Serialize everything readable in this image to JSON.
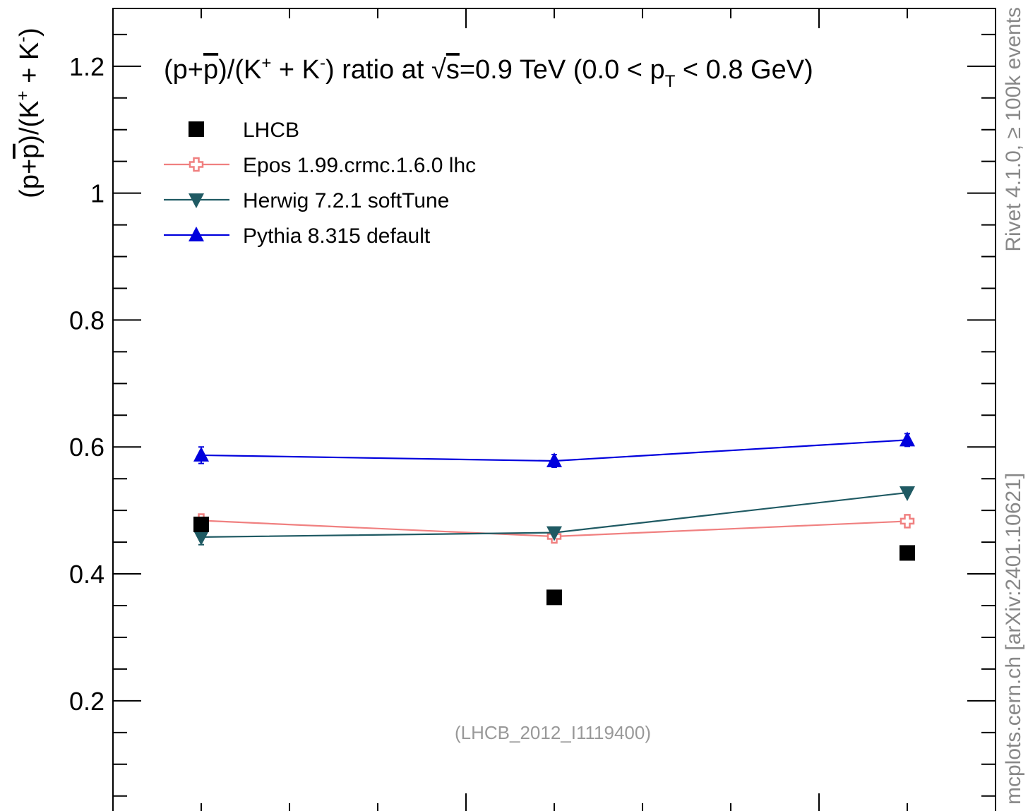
{
  "chart_data": {
    "type": "line",
    "title": "(p+p̄)/(K⁺ + K⁻) ratio at √s=0.9 TeV (0.0 < pT < 0.8 GeV)",
    "title_parts": {
      "a": "(p+",
      "p": "p",
      "b": ")/(K",
      "kplus": "+",
      "c": " + K",
      "kminus": "-",
      "d": ") ratio at ",
      "sqrt": "√",
      "s": "s",
      "e": "=0.9 TeV (0.0 < p",
      "t": "T",
      "f": " < 0.8 GeV)"
    },
    "ylabel": "(p+p̄)/(K⁺ + K⁻)",
    "ylabel_parts": {
      "a": "(p+",
      "p": "p",
      "b": ")/(K",
      "kplus": "+",
      "c": " + K",
      "kminus": "-",
      "d": ")"
    },
    "xlabel": "",
    "ylim": [
      0.023,
      1.291
    ],
    "xlim": [
      2.0,
      4.5
    ],
    "yticks": [
      0.2,
      0.4,
      0.6,
      0.8,
      1.0,
      1.2
    ],
    "ytick_labels": [
      "0.2",
      "0.4",
      "0.6",
      "0.8",
      "1",
      "1.2"
    ],
    "grid": false,
    "legend_position": "top-left",
    "x": [
      2.25,
      3.25,
      4.25
    ],
    "series": [
      {
        "name": "LHCB",
        "marker": "square",
        "color": "#000000",
        "values": [
          0.478,
          0.363,
          0.433
        ],
        "errors": [
          0.0,
          0.0,
          0.0
        ],
        "line": false
      },
      {
        "name": "Epos 1.99.crmc.1.6.0 lhc",
        "marker": "open-cross",
        "color": "#f08080",
        "values": [
          0.484,
          0.459,
          0.483
        ],
        "errors": [
          0.008,
          0.005,
          0.006
        ],
        "line": true
      },
      {
        "name": "Herwig 7.2.1 softTune",
        "marker": "triangle-down",
        "color": "#1f5a63",
        "values": [
          0.458,
          0.465,
          0.528
        ],
        "errors": [
          0.012,
          0.004,
          0.004
        ],
        "line": true
      },
      {
        "name": "Pythia 8.315 default",
        "marker": "triangle-up",
        "color": "#0000dd",
        "values": [
          0.587,
          0.578,
          0.611
        ],
        "errors": [
          0.013,
          0.01,
          0.01
        ],
        "line": true
      }
    ],
    "annotation": "(LHCB_2012_I1119400)",
    "side_text": {
      "top": "Rivet 4.1.0, ≥ 100k events",
      "bottom": "mcplots.cern.ch [arXiv:2401.10621]"
    }
  }
}
